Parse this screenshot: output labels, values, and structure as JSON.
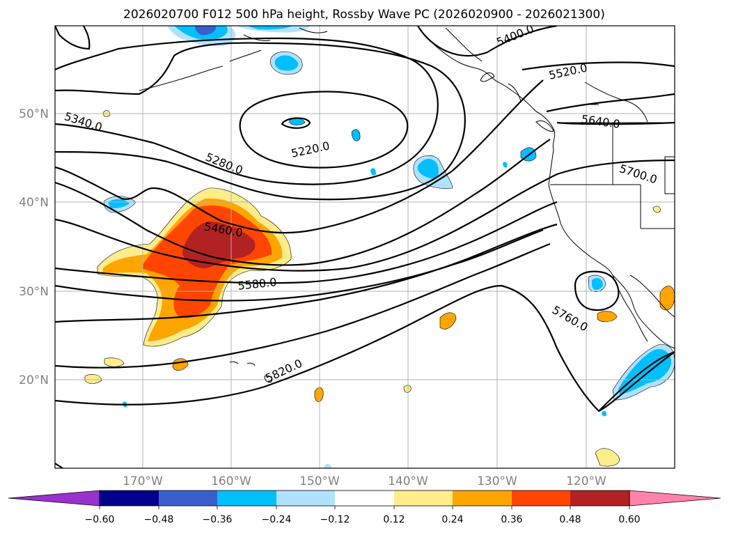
{
  "title": "2026020700 F012 500 hPa height, Rossby Wave PC (2026020900 - 2026021300)",
  "lat_labels": [
    "50°N",
    "40°N",
    "30°N",
    "20°N"
  ],
  "lon_labels": [
    "170°W",
    "160°W",
    "150°W",
    "140°W",
    "130°W",
    "120°W"
  ],
  "contour_labels": [
    "5400.0",
    "5520.0",
    "5340.0",
    "5220.0",
    "5280.0",
    "5640.0",
    "5700.0",
    "5460.0",
    "5580.0",
    "5760.0",
    "5820.0"
  ],
  "colorbar": {
    "ticks": [
      "−0.60",
      "−0.48",
      "−0.36",
      "−0.24",
      "−0.12",
      "0.12",
      "0.24",
      "0.36",
      "0.48",
      "0.60"
    ],
    "colors": [
      "#9932cc",
      "#00008b",
      "#3a5fcd",
      "#00bfff",
      "#b0e2ff",
      "#ffffff",
      "#ffec8b",
      "#ffa500",
      "#ff4500",
      "#b22222",
      "#ff82ab"
    ]
  },
  "fill_colors": {
    "neg_light": "#b0e2ff",
    "neg_mid": "#00bfff",
    "neg_dark": "#3a5fcd",
    "pos_light": "#ffec8b",
    "pos_mid": "#ffa500",
    "pos_high": "#ff4500",
    "pos_max": "#b22222"
  }
}
